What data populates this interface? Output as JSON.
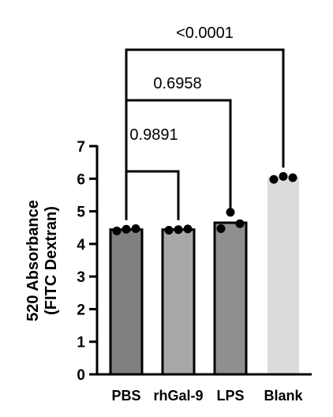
{
  "chart_data": {
    "type": "bar",
    "categories": [
      "PBS",
      "rhGal-9",
      "LPS",
      "Blank"
    ],
    "values": [
      4.44,
      4.44,
      4.65,
      6.05
    ],
    "points": [
      [
        4.4,
        4.45,
        4.47
      ],
      [
        4.42,
        4.44,
        4.46
      ],
      [
        4.47,
        4.97,
        4.62
      ],
      [
        5.98,
        6.07,
        6.03
      ]
    ],
    "bar_colors": [
      "#808080",
      "#a8a8a8",
      "#8f8f8f",
      "#dcdcdc"
    ],
    "ylabel_lines": [
      "520 Absorbance",
      "(FITC Dextran)"
    ],
    "ylim": [
      0,
      7
    ],
    "yticks": [
      "0",
      "1",
      "2",
      "3",
      "4",
      "5",
      "6",
      "7"
    ],
    "comparisons": [
      {
        "from": "PBS",
        "to": "rhGal-9",
        "label": "0.9891"
      },
      {
        "from": "PBS",
        "to": "LPS",
        "label": "0.6958"
      },
      {
        "from": "PBS",
        "to": "Blank",
        "label": "<0.0001"
      }
    ],
    "grid": false,
    "legend": "none"
  }
}
